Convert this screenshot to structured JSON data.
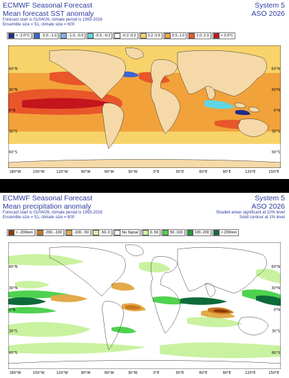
{
  "sst": {
    "title": "ECMWF Seasonal Forecast",
    "subtitle": "Mean forecast SST anomaly",
    "info1": "Forecast start is 01/04/26, climate period is 1993-2016",
    "info2": "Ensemble size = 51, climate size = 600",
    "system": "System 5",
    "season": "ASO 2026",
    "legend": [
      {
        "label": "< -2.0°C",
        "color": "#1f2a8c"
      },
      {
        "label": "-2.0..-1.0",
        "color": "#3a64d8"
      },
      {
        "label": "-1.0..-0.5",
        "color": "#7db3ee"
      },
      {
        "label": "-0.5..-0.2",
        "color": "#5fd6e6"
      },
      {
        "label": "-0.2..0.2",
        "color": "#ffffff"
      },
      {
        "label": "0.2..0.5",
        "color": "#f7d36a"
      },
      {
        "label": "0.5..1.0",
        "color": "#f2a23a"
      },
      {
        "label": "1.0..2.0",
        "color": "#e8562a"
      },
      {
        "label": "> 2.0°C",
        "color": "#c4141c"
      }
    ]
  },
  "precip": {
    "title": "ECMWF Seasonal Forecast",
    "subtitle": "Mean precipitation anomaly",
    "info1": "Forecast start is 01/04/26, climate period is 1993-2016",
    "info2": "Ensemble size = 51, climate size = 600",
    "system": "System 5",
    "season": "ASO 2026",
    "note1": "Shaded areas significant at 10% level",
    "note2": "Solid contour at 1% level",
    "legend": [
      {
        "label": "< -200mm",
        "color": "#8c3a0a"
      },
      {
        "label": "-200..-100",
        "color": "#c8781e"
      },
      {
        "label": "-100..-50",
        "color": "#e3a94a"
      },
      {
        "label": "-50..0",
        "color": "#f7e3a6"
      },
      {
        "label": "No Signal",
        "color": "#ffffff"
      },
      {
        "label": "0..50",
        "color": "#c9f2a0"
      },
      {
        "label": "50..100",
        "color": "#4fd24f"
      },
      {
        "label": "100..200",
        "color": "#1f9a3a"
      },
      {
        "label": "> 200mm",
        "color": "#0f6a3a"
      }
    ]
  },
  "axes": {
    "lon_labels": [
      "180°W",
      "150°W",
      "120°W",
      "90°W",
      "60°W",
      "30°W",
      "0°E",
      "30°E",
      "60°E",
      "90°E",
      "120°E",
      "150°E"
    ],
    "lat_labels": [
      "60°N",
      "30°N",
      "0°N",
      "30°S",
      "60°S"
    ],
    "colors": {
      "land": "#f5d9a8",
      "land_precip": "#ffffff",
      "title_blue": "#2b3ba0"
    }
  }
}
